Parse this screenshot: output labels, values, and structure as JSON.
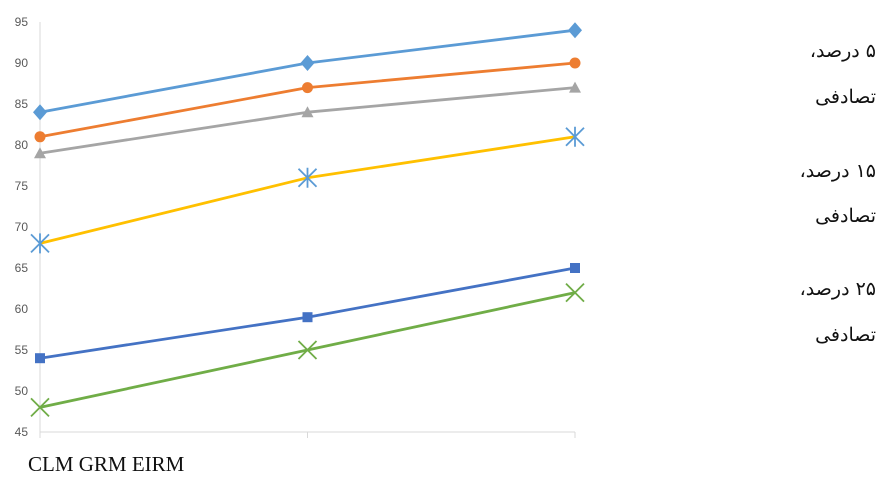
{
  "chart_data": {
    "type": "line",
    "categories": [
      "",
      "",
      ""
    ],
    "ylim": [
      45,
      95
    ],
    "yticks": [
      "45",
      "50",
      "55",
      "60",
      "65",
      "70",
      "75",
      "80",
      "85",
      "90",
      "95"
    ],
    "grid": false,
    "series": [
      {
        "color": "#5B9BD5",
        "marker": "diamond",
        "values": [
          84,
          90,
          94
        ]
      },
      {
        "color": "#ED7D31",
        "marker": "circle",
        "values": [
          81,
          87,
          90
        ]
      },
      {
        "color": "#A5A5A5",
        "marker": "triangle",
        "values": [
          79,
          84,
          87
        ]
      },
      {
        "color": "#FFC000",
        "marker": "asterisk",
        "values": [
          68,
          76,
          81
        ]
      },
      {
        "color": "#4472C4",
        "marker": "square",
        "values": [
          54,
          59,
          65
        ]
      },
      {
        "color": "#70AD47",
        "marker": "x",
        "values": [
          48,
          55,
          62
        ]
      }
    ],
    "xcaption": "CLM GRM EIRM",
    "legend_text": [
      "۵ درصد،",
      "تصادفی",
      "۱۵ درصد،",
      "تصادفی",
      "۲۵ درصد،",
      "تصادفی"
    ]
  }
}
